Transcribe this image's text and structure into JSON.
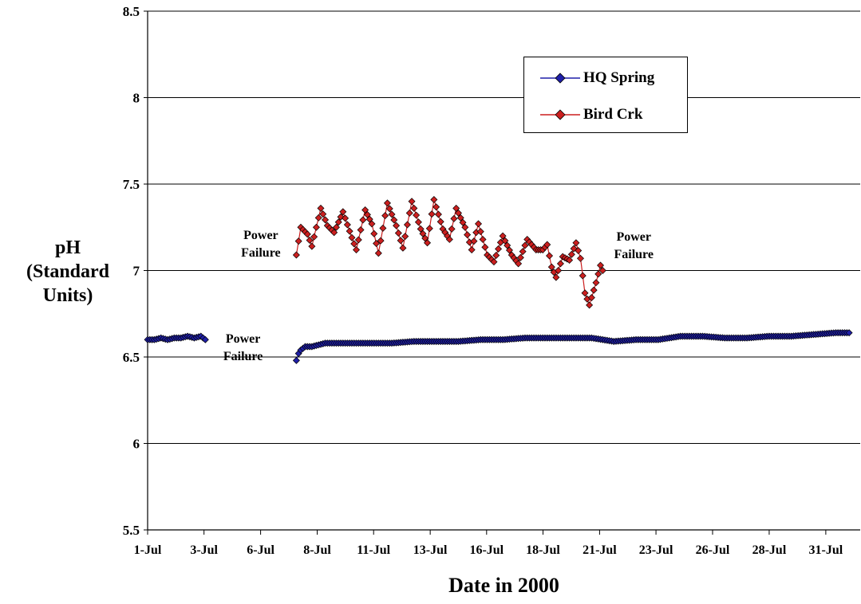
{
  "chart_data": {
    "type": "line",
    "title": "",
    "xlabel": "Date in 2000",
    "ylabel": "pH\n(Standard\nUnits)",
    "ylim": [
      5.5,
      8.5
    ],
    "yticks": [
      "5.5",
      "6",
      "6.5",
      "7",
      "7.5",
      "8",
      "8.5"
    ],
    "xlim": [
      "2000-07-01",
      "2000-08-02"
    ],
    "xticks": [
      {
        "label": "1-Jul",
        "day": 1
      },
      {
        "label": "3-Jul",
        "day": 3.54
      },
      {
        "label": "6-Jul",
        "day": 6.09
      },
      {
        "label": "8-Jul",
        "day": 8.64
      },
      {
        "label": "11-Jul",
        "day": 11.18
      },
      {
        "label": "13-Jul",
        "day": 13.73
      },
      {
        "label": "16-Jul",
        "day": 16.27
      },
      {
        "label": "18-Jul",
        "day": 18.81
      },
      {
        "label": "21-Jul",
        "day": 21.36
      },
      {
        "label": "23-Jul",
        "day": 23.9
      },
      {
        "label": "26-Jul",
        "day": 26.45
      },
      {
        "label": "28-Jul",
        "day": 29.0
      },
      {
        "label": "31-Jul",
        "day": 31.55
      }
    ],
    "grid": "horizontal",
    "legend_position": "top-right",
    "series": [
      {
        "name": "HQ Spring",
        "color": "#1f1fa8",
        "marker": "diamond",
        "segments": [
          [
            [
              1.0,
              6.6
            ],
            [
              1.3,
              6.6
            ],
            [
              1.6,
              6.61
            ],
            [
              1.9,
              6.6
            ],
            [
              2.2,
              6.61
            ],
            [
              2.5,
              6.61
            ],
            [
              2.8,
              6.62
            ],
            [
              3.1,
              6.61
            ],
            [
              3.4,
              6.62
            ],
            [
              3.6,
              6.6
            ]
          ],
          [
            [
              7.7,
              6.48
            ],
            [
              7.8,
              6.52
            ],
            [
              7.9,
              6.54
            ],
            [
              8.1,
              6.56
            ],
            [
              8.4,
              6.56
            ],
            [
              8.7,
              6.57
            ],
            [
              9.0,
              6.58
            ],
            [
              9.4,
              6.58
            ],
            [
              10.0,
              6.58
            ],
            [
              11.0,
              6.58
            ],
            [
              12.0,
              6.58
            ],
            [
              13.0,
              6.59
            ],
            [
              14.0,
              6.59
            ],
            [
              15.0,
              6.59
            ],
            [
              16.0,
              6.6
            ],
            [
              17.0,
              6.6
            ],
            [
              18.0,
              6.61
            ],
            [
              19.0,
              6.61
            ],
            [
              20.0,
              6.61
            ],
            [
              21.0,
              6.61
            ],
            [
              22.0,
              6.59
            ],
            [
              23.0,
              6.6
            ],
            [
              24.0,
              6.6
            ],
            [
              25.0,
              6.62
            ],
            [
              26.0,
              6.62
            ],
            [
              27.0,
              6.61
            ],
            [
              28.0,
              6.61
            ],
            [
              29.0,
              6.62
            ],
            [
              30.0,
              6.62
            ],
            [
              31.0,
              6.63
            ],
            [
              32.0,
              6.64
            ],
            [
              32.6,
              6.64
            ]
          ]
        ]
      },
      {
        "name": "Bird Crk",
        "color": "#cc1f1f",
        "marker": "diamond",
        "segments": [
          [
            [
              7.7,
              7.09
            ],
            [
              7.9,
              7.25
            ],
            [
              8.2,
              7.21
            ],
            [
              8.4,
              7.14
            ],
            [
              8.8,
              7.36
            ],
            [
              9.1,
              7.26
            ],
            [
              9.4,
              7.22
            ],
            [
              9.8,
              7.34
            ],
            [
              10.2,
              7.19
            ],
            [
              10.4,
              7.12
            ],
            [
              10.8,
              7.35
            ],
            [
              11.1,
              7.27
            ],
            [
              11.4,
              7.1
            ],
            [
              11.8,
              7.39
            ],
            [
              12.2,
              7.26
            ],
            [
              12.5,
              7.13
            ],
            [
              12.9,
              7.4
            ],
            [
              13.3,
              7.24
            ],
            [
              13.6,
              7.16
            ],
            [
              13.9,
              7.41
            ],
            [
              14.3,
              7.24
            ],
            [
              14.6,
              7.18
            ],
            [
              14.9,
              7.36
            ],
            [
              15.3,
              7.25
            ],
            [
              15.6,
              7.12
            ],
            [
              15.9,
              7.27
            ],
            [
              16.3,
              7.09
            ],
            [
              16.6,
              7.05
            ],
            [
              17.0,
              7.2
            ],
            [
              17.4,
              7.09
            ],
            [
              17.7,
              7.04
            ],
            [
              18.1,
              7.18
            ],
            [
              18.5,
              7.12
            ],
            [
              18.8,
              7.12
            ],
            [
              19.0,
              7.15
            ],
            [
              19.2,
              7.02
            ],
            [
              19.4,
              6.96
            ],
            [
              19.7,
              7.08
            ],
            [
              20.0,
              7.06
            ],
            [
              20.3,
              7.16
            ],
            [
              20.5,
              7.07
            ],
            [
              20.7,
              6.87
            ],
            [
              20.9,
              6.8
            ],
            [
              21.2,
              6.93
            ],
            [
              21.4,
              7.03
            ],
            [
              21.5,
              7.0
            ]
          ]
        ]
      }
    ],
    "annotations": [
      {
        "text": "Power\nFailure",
        "day": 5.3,
        "y": 6.55
      },
      {
        "text": "Power\nFailure",
        "day": 6.1,
        "y": 7.15
      },
      {
        "text": "Power\nFailure",
        "day": 22.9,
        "y": 7.14
      }
    ]
  }
}
